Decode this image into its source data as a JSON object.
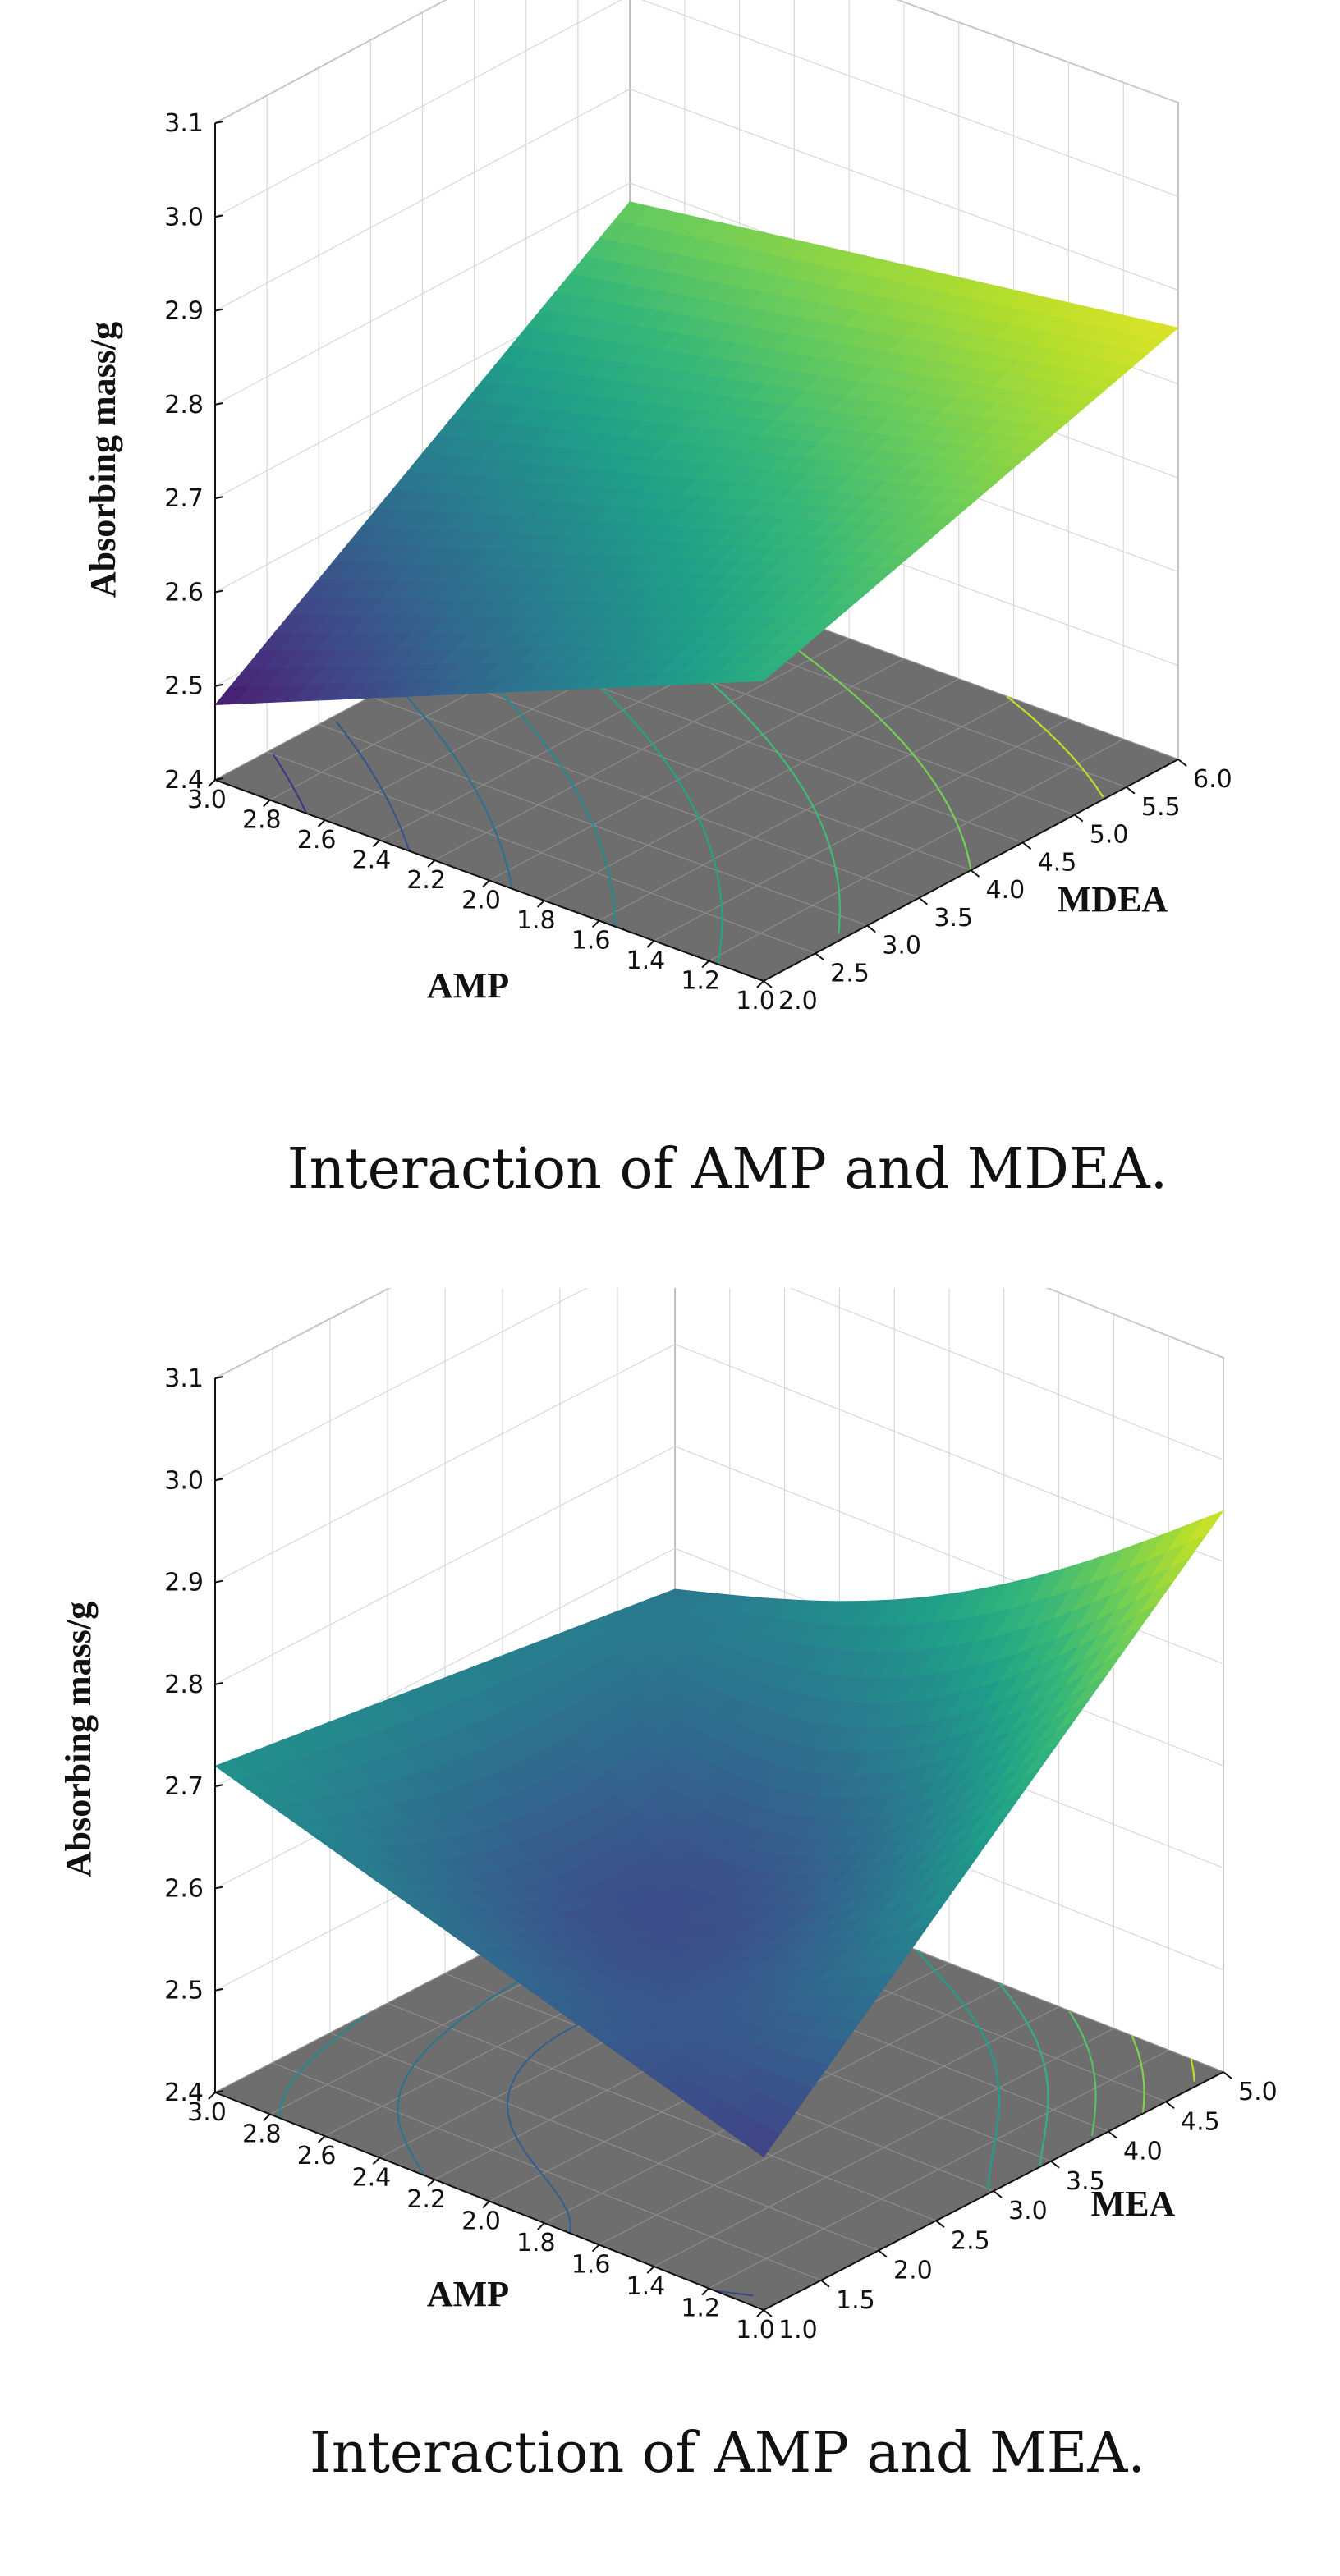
{
  "chart_data": [
    {
      "type": "surface3d",
      "title": "",
      "caption": "Interaction of AMP and MDEA.",
      "xlabel": "AMP",
      "ylabel": "MDEA",
      "zlabel": "Absorbing mass/g",
      "xlim": [
        1.0,
        3.0
      ],
      "ylim": [
        2.0,
        6.0
      ],
      "zlim": [
        2.4,
        3.1
      ],
      "x_ticks": [
        "1.0",
        "1.2",
        "1.4",
        "1.6",
        "1.8",
        "2.0",
        "2.2",
        "2.4",
        "2.6",
        "2.8",
        "3.0"
      ],
      "y_ticks": [
        "2.0",
        "2.5",
        "3.0",
        "3.5",
        "4.0",
        "4.5",
        "5.0",
        "5.5",
        "6.0"
      ],
      "z_ticks": [
        "2.4",
        "2.5",
        "2.6",
        "2.7",
        "2.8",
        "2.9",
        "3.0",
        "3.1"
      ],
      "corners": [
        {
          "AMP": 3.0,
          "MDEA": 2.0,
          "value": 2.48
        },
        {
          "AMP": 1.0,
          "MDEA": 2.0,
          "value": 2.72
        },
        {
          "AMP": 3.0,
          "MDEA": 6.0,
          "value": 2.78
        },
        {
          "AMP": 1.0,
          "MDEA": 6.0,
          "value": 2.86
        }
      ],
      "floor_contours": true,
      "colormap": "viridis"
    },
    {
      "type": "surface3d",
      "title": "",
      "caption": "Interaction of AMP and MEA.",
      "xlabel": "AMP",
      "ylabel": "MEA",
      "zlabel": "Absorbing mass/g",
      "xlim": [
        1.0,
        3.0
      ],
      "ylim": [
        1.0,
        5.0
      ],
      "zlim": [
        2.4,
        3.1
      ],
      "x_ticks": [
        "1.0",
        "1.2",
        "1.4",
        "1.6",
        "1.8",
        "2.0",
        "2.2",
        "2.4",
        "2.6",
        "2.8",
        "3.0"
      ],
      "y_ticks": [
        "1.0",
        "1.5",
        "2.0",
        "2.5",
        "3.0",
        "3.5",
        "4.0",
        "4.5",
        "5.0"
      ],
      "z_ticks": [
        "2.4",
        "2.5",
        "2.6",
        "2.7",
        "2.8",
        "2.9",
        "3.0",
        "3.1"
      ],
      "corners": [
        {
          "AMP": 3.0,
          "MEA": 1.0,
          "value": 2.72
        },
        {
          "AMP": 1.0,
          "MEA": 1.0,
          "value": 2.55
        },
        {
          "AMP": 3.0,
          "MEA": 5.0,
          "value": 2.66
        },
        {
          "AMP": 1.0,
          "MEA": 5.0,
          "value": 2.95
        }
      ],
      "floor_contours": true,
      "colormap": "viridis"
    }
  ]
}
